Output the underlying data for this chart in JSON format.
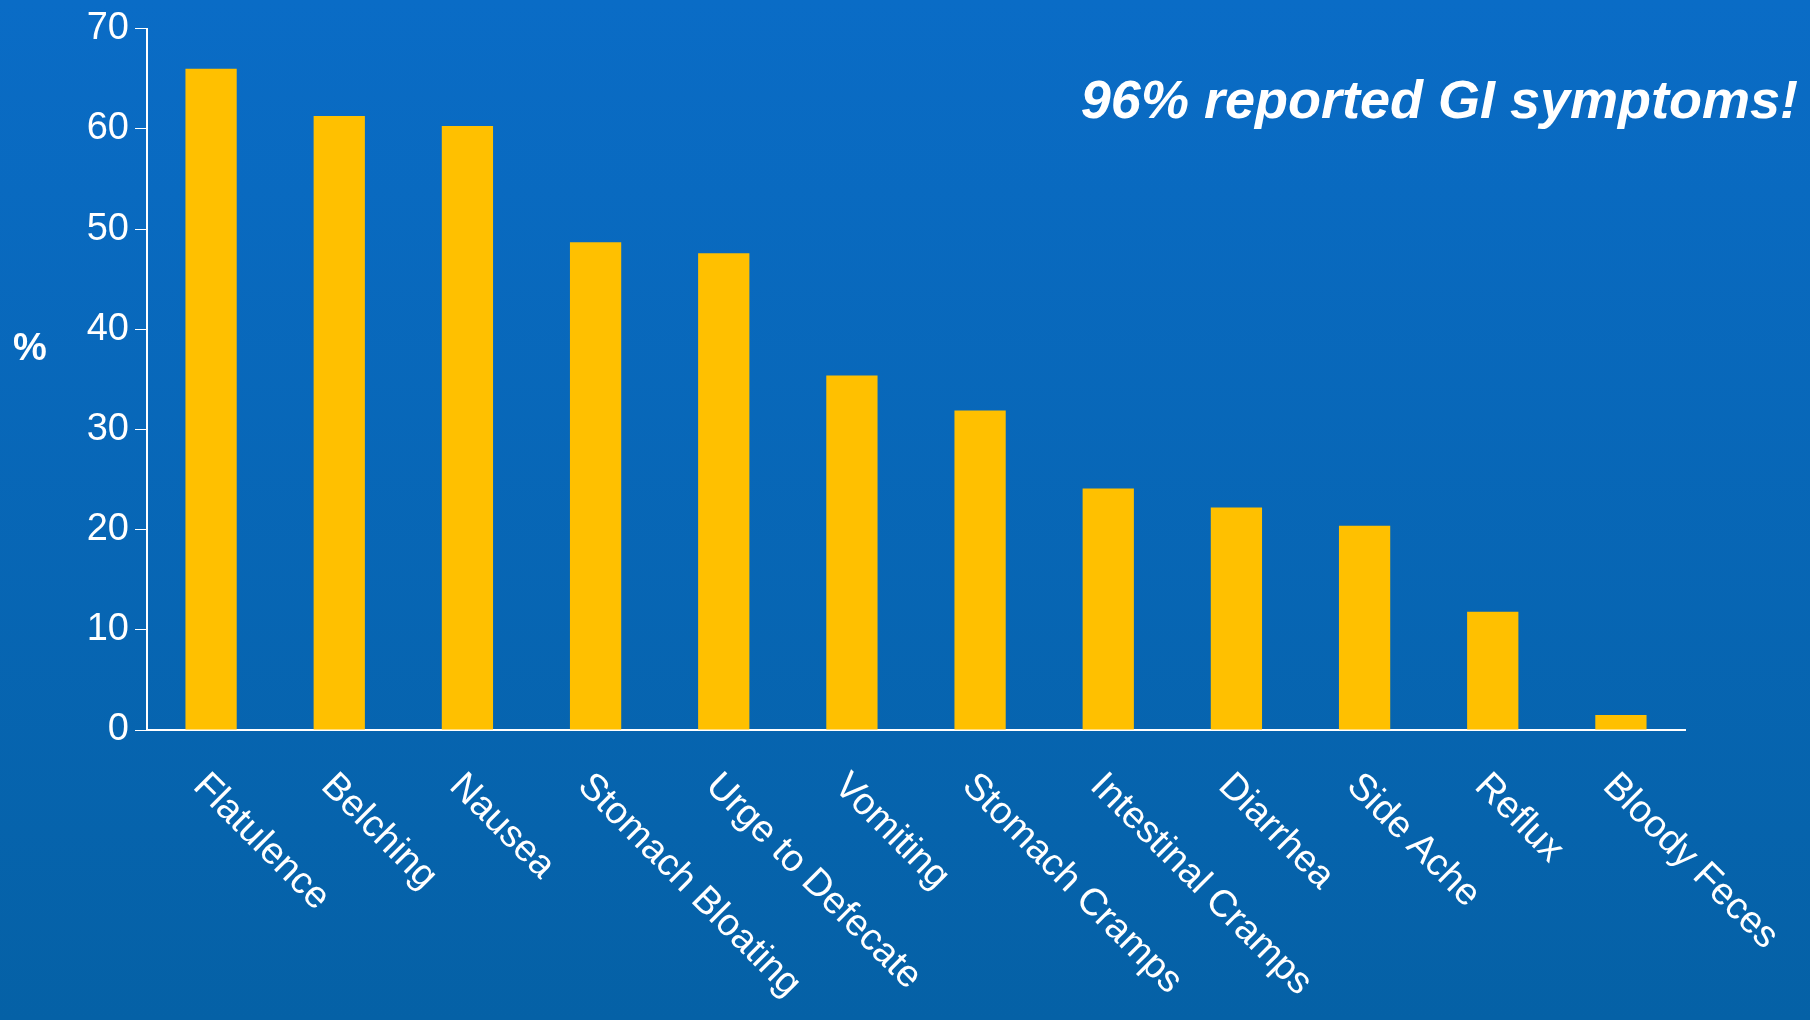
{
  "chart_data": {
    "type": "bar",
    "ylabel": "%",
    "annotations": [
      "96% reported GI symptoms!"
    ],
    "categories": [
      "Flatulence",
      "Belching",
      "Nausea",
      "Stomach Bloating",
      "Urge to Defecate",
      "Vomiting",
      "Stomach Cramps",
      "Intestinal Cramps",
      "Diarrhea",
      "Side Ache",
      "Reflux",
      "Bloody Feces"
    ],
    "values": [
      66,
      61.3,
      60.3,
      48.7,
      47.6,
      35.4,
      31.9,
      24.1,
      22.2,
      20.4,
      11.8,
      1.5
    ],
    "color": "#ffc000",
    "ylim": [
      0,
      70
    ],
    "yticks": [
      0,
      10,
      20,
      30,
      40,
      50,
      60,
      70
    ],
    "grid": false,
    "legend": false
  }
}
